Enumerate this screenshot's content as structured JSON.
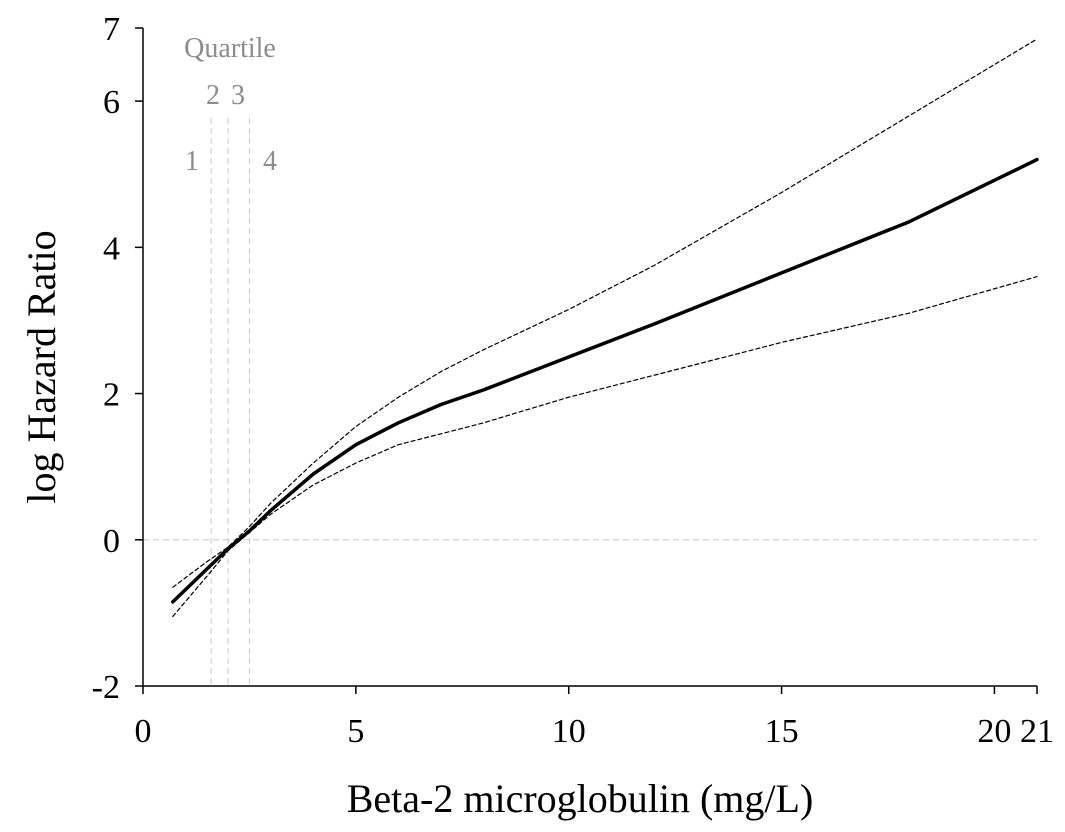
{
  "chart_data": {
    "type": "line",
    "xlabel": "Beta-2 microglobulin (mg/L)",
    "ylabel": "log Hazard Ratio",
    "xlim": [
      0,
      21
    ],
    "ylim": [
      -2,
      7
    ],
    "x_ticks": [
      0,
      5,
      10,
      15,
      20,
      21
    ],
    "x_tick_labels": [
      "0",
      "5",
      "10",
      "15",
      "20",
      "21"
    ],
    "y_ticks": [
      -2,
      0,
      2,
      4,
      6,
      7
    ],
    "y_tick_labels": [
      "-2",
      "0",
      "2",
      "4",
      "6",
      "7"
    ],
    "grid": false,
    "reference_line_y": 0,
    "quartiles": {
      "title": "Quartile",
      "cutpoints": [
        1.6,
        2.0,
        2.5
      ],
      "labels": [
        "1",
        "2",
        "3",
        "4"
      ]
    },
    "series": [
      {
        "role": "estimate",
        "style": "solid",
        "x": [
          0.7,
          1.5,
          2.0,
          2.5,
          3.0,
          4.0,
          5.0,
          6.0,
          7.0,
          8.0,
          10.0,
          12.0,
          15.0,
          18.0,
          21.0
        ],
        "y": [
          -0.85,
          -0.4,
          -0.12,
          0.12,
          0.4,
          0.9,
          1.3,
          1.6,
          1.85,
          2.05,
          2.5,
          2.95,
          3.65,
          4.35,
          5.2
        ]
      },
      {
        "role": "upper_ci",
        "style": "dashed",
        "x": [
          0.7,
          1.5,
          2.0,
          2.5,
          3.0,
          4.0,
          5.0,
          6.0,
          7.0,
          8.0,
          10.0,
          12.0,
          15.0,
          18.0,
          21.0
        ],
        "y": [
          -0.65,
          -0.3,
          -0.1,
          0.18,
          0.5,
          1.05,
          1.55,
          1.95,
          2.3,
          2.6,
          3.15,
          3.75,
          4.75,
          5.8,
          6.85
        ]
      },
      {
        "role": "lower_ci",
        "style": "dashed",
        "x": [
          0.7,
          1.5,
          2.0,
          2.5,
          3.0,
          4.0,
          5.0,
          6.0,
          7.0,
          8.0,
          10.0,
          12.0,
          15.0,
          18.0,
          21.0
        ],
        "y": [
          -1.05,
          -0.5,
          -0.15,
          0.1,
          0.35,
          0.75,
          1.05,
          1.3,
          1.45,
          1.6,
          1.95,
          2.25,
          2.7,
          3.1,
          3.6
        ]
      }
    ]
  }
}
